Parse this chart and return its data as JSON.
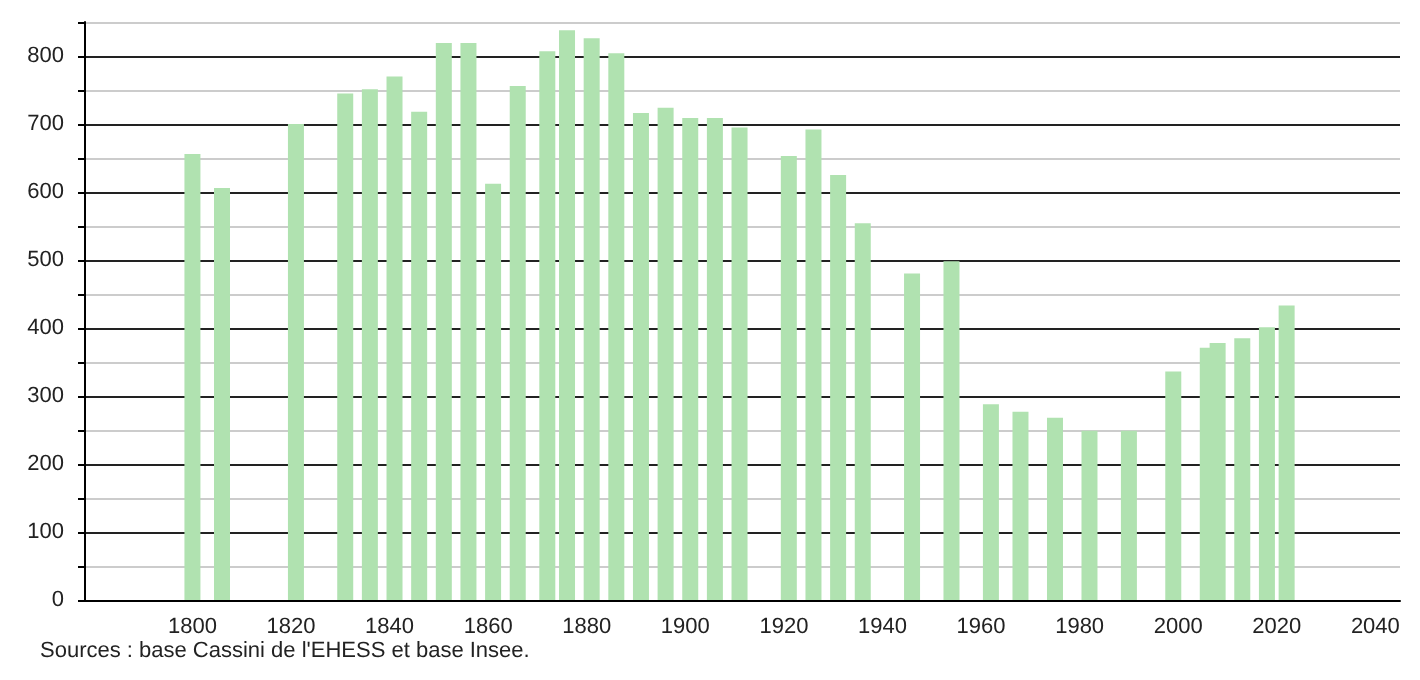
{
  "chart_data": {
    "type": "bar",
    "x": [
      1800,
      1806,
      1821,
      1831,
      1836,
      1841,
      1846,
      1851,
      1856,
      1861,
      1866,
      1872,
      1876,
      1881,
      1886,
      1891,
      1896,
      1901,
      1906,
      1911,
      1921,
      1926,
      1931,
      1936,
      1946,
      1954,
      1962,
      1968,
      1975,
      1982,
      1990,
      1999,
      2006,
      2008,
      2013,
      2018,
      2022
    ],
    "values": [
      656,
      606,
      700,
      745,
      751,
      770,
      718,
      819,
      819,
      612,
      756,
      807,
      838,
      826,
      804,
      716,
      724,
      709,
      709,
      695,
      653,
      692,
      625,
      554,
      480,
      498,
      288,
      277,
      268,
      249,
      249,
      336,
      371,
      378,
      385,
      401,
      433
    ],
    "color": "#b0e2b0",
    "xlim": [
      1778,
      2045
    ],
    "xticks": [
      1800,
      1820,
      1840,
      1860,
      1880,
      1900,
      1920,
      1940,
      1960,
      1980,
      2000,
      2020,
      2040
    ],
    "ylim": [
      0,
      850
    ],
    "yticks": [
      0,
      {
        "value": 50,
        "label": null
      },
      100,
      {
        "value": 150,
        "label": null
      },
      200,
      {
        "value": 250,
        "label": null
      },
      300,
      {
        "value": 350,
        "label": null
      },
      400,
      {
        "value": 450,
        "label": null
      },
      500,
      {
        "value": 550,
        "label": null
      },
      600,
      {
        "value": 650,
        "label": null
      },
      700,
      {
        "value": 750,
        "label": null
      },
      800,
      {
        "value": 850,
        "label": null
      }
    ],
    "grid": "y",
    "annotations": [
      "Sources : base Cassini de l'EHESS et base Insee."
    ]
  }
}
